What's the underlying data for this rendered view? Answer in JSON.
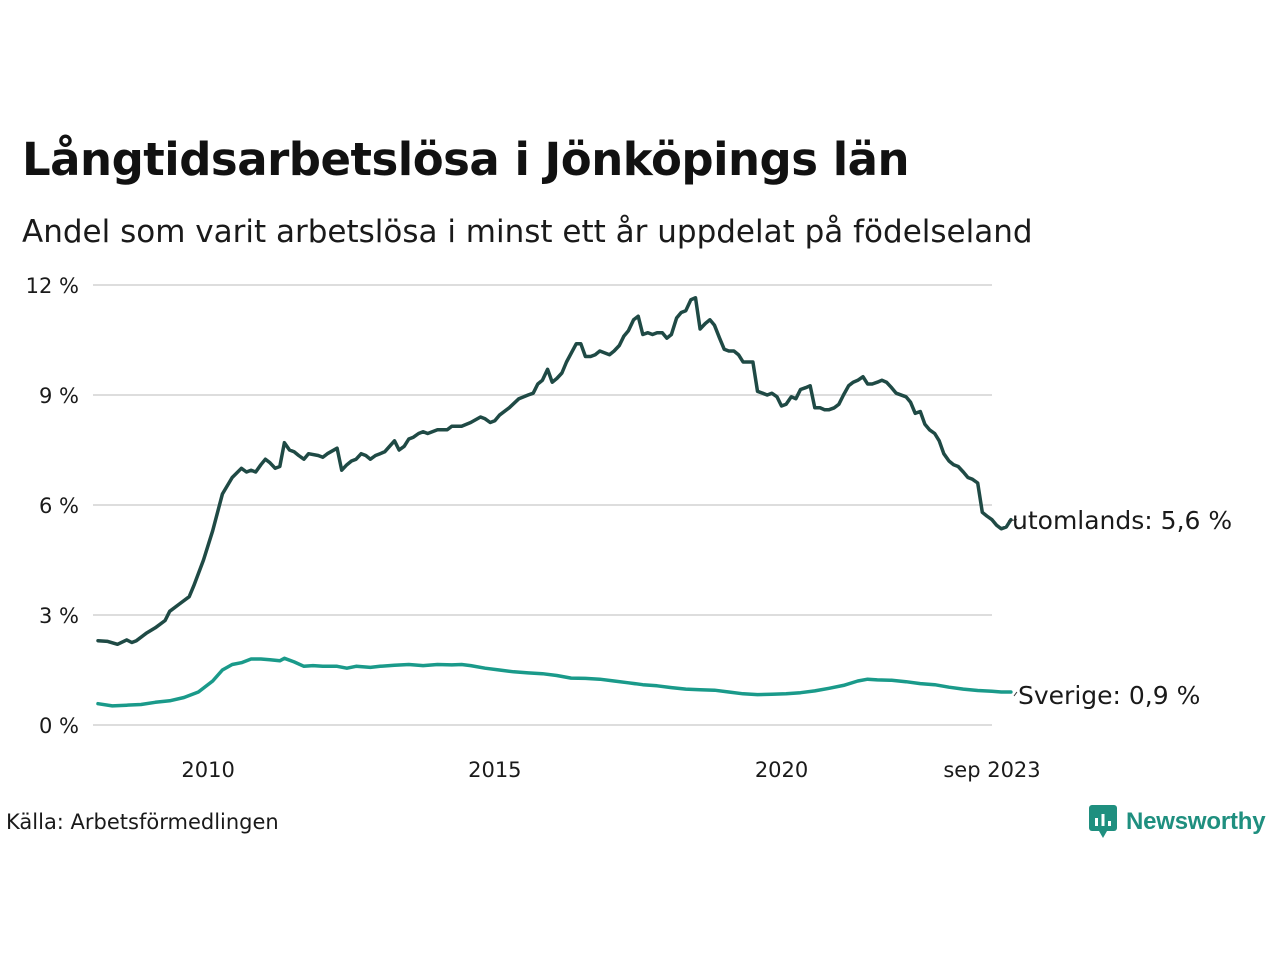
{
  "title": "Långtidsarbetslösa i Jönköpings län",
  "subtitle": "Andel som varit arbetslösa i minst ett år uppdelat på födelseland",
  "source": "Källa: Arbetsförmedlingen",
  "brand": "Newsworthy",
  "colors": {
    "utomlands": "#1f4a45",
    "sverige": "#1a9a8a",
    "grid": "#dddddd",
    "brand": "#1f8f7f"
  },
  "chart_data": {
    "type": "line",
    "title": "Långtidsarbetslösa i Jönköpings län",
    "ylim": [
      0,
      12
    ],
    "xlim": [
      2008.08,
      2023.67
    ],
    "y_ticks": [
      0,
      3,
      6,
      9,
      12
    ],
    "y_tick_labels": [
      "0 %",
      "3 %",
      "6 %",
      "9 %",
      "12 %"
    ],
    "x_ticks": [
      2010,
      2015,
      2020,
      2023.67
    ],
    "x_tick_labels": [
      "2010",
      "2015",
      "2020",
      "sep 2023"
    ],
    "grid": true,
    "series": [
      {
        "name": "utomlands",
        "end_label": "utomlands: 5,6 %",
        "points": [
          [
            2008.08,
            2.3
          ],
          [
            2008.25,
            2.28
          ],
          [
            2008.42,
            2.2
          ],
          [
            2008.58,
            2.32
          ],
          [
            2008.67,
            2.25
          ],
          [
            2008.75,
            2.3
          ],
          [
            2008.92,
            2.5
          ],
          [
            2009.08,
            2.65
          ],
          [
            2009.25,
            2.85
          ],
          [
            2009.33,
            3.1
          ],
          [
            2009.5,
            3.3
          ],
          [
            2009.67,
            3.5
          ],
          [
            2009.75,
            3.8
          ],
          [
            2009.92,
            4.5
          ],
          [
            2010.08,
            5.3
          ],
          [
            2010.25,
            6.3
          ],
          [
            2010.42,
            6.75
          ],
          [
            2010.58,
            7.0
          ],
          [
            2010.67,
            6.9
          ],
          [
            2010.75,
            6.95
          ],
          [
            2010.83,
            6.9
          ],
          [
            2010.92,
            7.1
          ],
          [
            2011.0,
            7.25
          ],
          [
            2011.08,
            7.15
          ],
          [
            2011.17,
            7.0
          ],
          [
            2011.25,
            7.05
          ],
          [
            2011.33,
            7.7
          ],
          [
            2011.42,
            7.5
          ],
          [
            2011.5,
            7.45
          ],
          [
            2011.58,
            7.35
          ],
          [
            2011.67,
            7.25
          ],
          [
            2011.75,
            7.4
          ],
          [
            2011.92,
            7.35
          ],
          [
            2012.0,
            7.3
          ],
          [
            2012.08,
            7.4
          ],
          [
            2012.25,
            7.55
          ],
          [
            2012.33,
            6.95
          ],
          [
            2012.42,
            7.1
          ],
          [
            2012.5,
            7.2
          ],
          [
            2012.58,
            7.25
          ],
          [
            2012.67,
            7.4
          ],
          [
            2012.75,
            7.35
          ],
          [
            2012.83,
            7.25
          ],
          [
            2012.92,
            7.35
          ],
          [
            2013.0,
            7.4
          ],
          [
            2013.08,
            7.45
          ],
          [
            2013.25,
            7.75
          ],
          [
            2013.33,
            7.5
          ],
          [
            2013.42,
            7.6
          ],
          [
            2013.5,
            7.8
          ],
          [
            2013.58,
            7.85
          ],
          [
            2013.67,
            7.95
          ],
          [
            2013.75,
            8.0
          ],
          [
            2013.83,
            7.95
          ],
          [
            2014.0,
            8.05
          ],
          [
            2014.17,
            8.05
          ],
          [
            2014.25,
            8.15
          ],
          [
            2014.42,
            8.15
          ],
          [
            2014.58,
            8.25
          ],
          [
            2014.75,
            8.4
          ],
          [
            2014.83,
            8.35
          ],
          [
            2014.92,
            8.25
          ],
          [
            2015.0,
            8.3
          ],
          [
            2015.08,
            8.45
          ],
          [
            2015.25,
            8.65
          ],
          [
            2015.42,
            8.9
          ],
          [
            2015.58,
            9.0
          ],
          [
            2015.67,
            9.05
          ],
          [
            2015.75,
            9.3
          ],
          [
            2015.83,
            9.4
          ],
          [
            2015.92,
            9.7
          ],
          [
            2016.0,
            9.35
          ],
          [
            2016.08,
            9.45
          ],
          [
            2016.17,
            9.6
          ],
          [
            2016.25,
            9.9
          ],
          [
            2016.42,
            10.4
          ],
          [
            2016.5,
            10.4
          ],
          [
            2016.58,
            10.05
          ],
          [
            2016.67,
            10.05
          ],
          [
            2016.75,
            10.1
          ],
          [
            2016.83,
            10.2
          ],
          [
            2017.0,
            10.1
          ],
          [
            2017.08,
            10.2
          ],
          [
            2017.17,
            10.35
          ],
          [
            2017.25,
            10.6
          ],
          [
            2017.33,
            10.75
          ],
          [
            2017.42,
            11.05
          ],
          [
            2017.5,
            11.15
          ],
          [
            2017.58,
            10.65
          ],
          [
            2017.67,
            10.7
          ],
          [
            2017.75,
            10.65
          ],
          [
            2017.83,
            10.7
          ],
          [
            2017.92,
            10.7
          ],
          [
            2018.0,
            10.55
          ],
          [
            2018.08,
            10.65
          ],
          [
            2018.17,
            11.1
          ],
          [
            2018.25,
            11.25
          ],
          [
            2018.33,
            11.3
          ],
          [
            2018.42,
            11.6
          ],
          [
            2018.5,
            11.65
          ],
          [
            2018.58,
            10.8
          ],
          [
            2018.67,
            10.95
          ],
          [
            2018.75,
            11.05
          ],
          [
            2018.83,
            10.9
          ],
          [
            2018.92,
            10.55
          ],
          [
            2019.0,
            10.25
          ],
          [
            2019.08,
            10.2
          ],
          [
            2019.17,
            10.2
          ],
          [
            2019.25,
            10.1
          ],
          [
            2019.33,
            9.9
          ],
          [
            2019.5,
            9.9
          ],
          [
            2019.58,
            9.1
          ],
          [
            2019.67,
            9.05
          ],
          [
            2019.75,
            9.0
          ],
          [
            2019.83,
            9.05
          ],
          [
            2019.92,
            8.95
          ],
          [
            2020.0,
            8.7
          ],
          [
            2020.08,
            8.75
          ],
          [
            2020.17,
            8.95
          ],
          [
            2020.25,
            8.9
          ],
          [
            2020.33,
            9.15
          ],
          [
            2020.42,
            9.2
          ],
          [
            2020.5,
            9.25
          ],
          [
            2020.58,
            8.65
          ],
          [
            2020.67,
            8.65
          ],
          [
            2020.75,
            8.6
          ],
          [
            2020.83,
            8.6
          ],
          [
            2020.92,
            8.65
          ],
          [
            2021.0,
            8.75
          ],
          [
            2021.08,
            9.0
          ],
          [
            2021.17,
            9.25
          ],
          [
            2021.25,
            9.35
          ],
          [
            2021.33,
            9.4
          ],
          [
            2021.42,
            9.5
          ],
          [
            2021.5,
            9.3
          ],
          [
            2021.58,
            9.3
          ],
          [
            2021.67,
            9.35
          ],
          [
            2021.75,
            9.4
          ],
          [
            2021.83,
            9.35
          ],
          [
            2021.92,
            9.2
          ],
          [
            2022.0,
            9.05
          ],
          [
            2022.17,
            8.95
          ],
          [
            2022.25,
            8.8
          ],
          [
            2022.33,
            8.5
          ],
          [
            2022.42,
            8.55
          ],
          [
            2022.5,
            8.2
          ],
          [
            2022.58,
            8.05
          ],
          [
            2022.67,
            7.95
          ],
          [
            2022.75,
            7.75
          ],
          [
            2022.83,
            7.4
          ],
          [
            2022.92,
            7.2
          ],
          [
            2023.0,
            7.1
          ],
          [
            2023.08,
            7.05
          ],
          [
            2023.17,
            6.9
          ],
          [
            2023.25,
            6.75
          ],
          [
            2023.33,
            6.7
          ],
          [
            2023.42,
            6.6
          ],
          [
            2023.5,
            5.8
          ],
          [
            2023.58,
            5.7
          ],
          [
            2023.67,
            5.6
          ],
          [
            2023.75,
            5.45
          ],
          [
            2023.83,
            5.35
          ],
          [
            2023.92,
            5.4
          ],
          [
            2024.0,
            5.6
          ]
        ]
      },
      {
        "name": "Sverige",
        "end_label": "Sverige: 0,9 %",
        "points": [
          [
            2008.08,
            0.58
          ],
          [
            2008.33,
            0.52
          ],
          [
            2008.58,
            0.54
          ],
          [
            2008.83,
            0.56
          ],
          [
            2009.08,
            0.62
          ],
          [
            2009.33,
            0.66
          ],
          [
            2009.58,
            0.75
          ],
          [
            2009.83,
            0.9
          ],
          [
            2010.08,
            1.2
          ],
          [
            2010.25,
            1.5
          ],
          [
            2010.42,
            1.65
          ],
          [
            2010.58,
            1.7
          ],
          [
            2010.75,
            1.8
          ],
          [
            2010.92,
            1.8
          ],
          [
            2011.08,
            1.78
          ],
          [
            2011.25,
            1.75
          ],
          [
            2011.33,
            1.82
          ],
          [
            2011.5,
            1.72
          ],
          [
            2011.67,
            1.6
          ],
          [
            2011.83,
            1.62
          ],
          [
            2012.0,
            1.6
          ],
          [
            2012.25,
            1.6
          ],
          [
            2012.42,
            1.55
          ],
          [
            2012.58,
            1.6
          ],
          [
            2012.83,
            1.57
          ],
          [
            2013.0,
            1.6
          ],
          [
            2013.25,
            1.63
          ],
          [
            2013.5,
            1.65
          ],
          [
            2013.75,
            1.62
          ],
          [
            2014.0,
            1.65
          ],
          [
            2014.25,
            1.64
          ],
          [
            2014.42,
            1.65
          ],
          [
            2014.58,
            1.62
          ],
          [
            2014.83,
            1.55
          ],
          [
            2015.08,
            1.5
          ],
          [
            2015.33,
            1.45
          ],
          [
            2015.58,
            1.42
          ],
          [
            2015.83,
            1.4
          ],
          [
            2016.08,
            1.35
          ],
          [
            2016.33,
            1.28
          ],
          [
            2016.58,
            1.27
          ],
          [
            2016.83,
            1.25
          ],
          [
            2017.08,
            1.2
          ],
          [
            2017.33,
            1.15
          ],
          [
            2017.58,
            1.1
          ],
          [
            2017.83,
            1.07
          ],
          [
            2018.08,
            1.02
          ],
          [
            2018.33,
            0.98
          ],
          [
            2018.58,
            0.96
          ],
          [
            2018.83,
            0.95
          ],
          [
            2019.08,
            0.9
          ],
          [
            2019.33,
            0.85
          ],
          [
            2019.58,
            0.83
          ],
          [
            2019.83,
            0.84
          ],
          [
            2020.08,
            0.85
          ],
          [
            2020.33,
            0.88
          ],
          [
            2020.58,
            0.93
          ],
          [
            2020.83,
            1.0
          ],
          [
            2021.08,
            1.08
          ],
          [
            2021.33,
            1.2
          ],
          [
            2021.5,
            1.25
          ],
          [
            2021.67,
            1.23
          ],
          [
            2021.92,
            1.22
          ],
          [
            2022.17,
            1.18
          ],
          [
            2022.42,
            1.13
          ],
          [
            2022.67,
            1.1
          ],
          [
            2022.92,
            1.03
          ],
          [
            2023.17,
            0.98
          ],
          [
            2023.42,
            0.94
          ],
          [
            2023.67,
            0.92
          ],
          [
            2023.83,
            0.9
          ],
          [
            2024.0,
            0.9
          ]
        ]
      }
    ]
  }
}
